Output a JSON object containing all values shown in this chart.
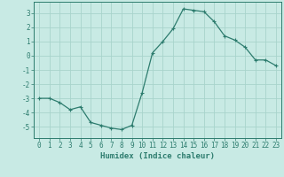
{
  "x": [
    0,
    1,
    2,
    3,
    4,
    5,
    6,
    7,
    8,
    9,
    10,
    11,
    12,
    13,
    14,
    15,
    16,
    17,
    18,
    19,
    20,
    21,
    22,
    23
  ],
  "y": [
    -3.0,
    -3.0,
    -3.3,
    -3.8,
    -3.6,
    -4.7,
    -4.9,
    -5.1,
    -5.2,
    -4.9,
    -2.6,
    0.2,
    1.0,
    1.9,
    3.3,
    3.2,
    3.1,
    2.4,
    1.4,
    1.1,
    0.6,
    -0.3,
    -0.3,
    -0.7
  ],
  "line_color": "#2d7c6e",
  "marker": "+",
  "marker_size": 3,
  "background_color": "#c8eae4",
  "grid_color": "#a8d4cc",
  "axis_color": "#2d7c6e",
  "xlabel": "Humidex (Indice chaleur)",
  "ylim": [
    -5.8,
    3.8
  ],
  "xlim": [
    -0.5,
    23.5
  ],
  "yticks": [
    -5,
    -4,
    -3,
    -2,
    -1,
    0,
    1,
    2,
    3
  ],
  "xticks": [
    0,
    1,
    2,
    3,
    4,
    5,
    6,
    7,
    8,
    9,
    10,
    11,
    12,
    13,
    14,
    15,
    16,
    17,
    18,
    19,
    20,
    21,
    22,
    23
  ],
  "xtick_labels": [
    "0",
    "1",
    "2",
    "3",
    "4",
    "5",
    "6",
    "7",
    "8",
    "9",
    "10",
    "11",
    "12",
    "13",
    "14",
    "15",
    "16",
    "17",
    "18",
    "19",
    "20",
    "21",
    "22",
    "23"
  ],
  "fontsize_ticks": 5.5,
  "fontsize_xlabel": 6.5,
  "tick_color": "#2d7c6e",
  "text_color": "#2d7c6e",
  "linewidth": 0.9,
  "markeredgewidth": 0.8
}
